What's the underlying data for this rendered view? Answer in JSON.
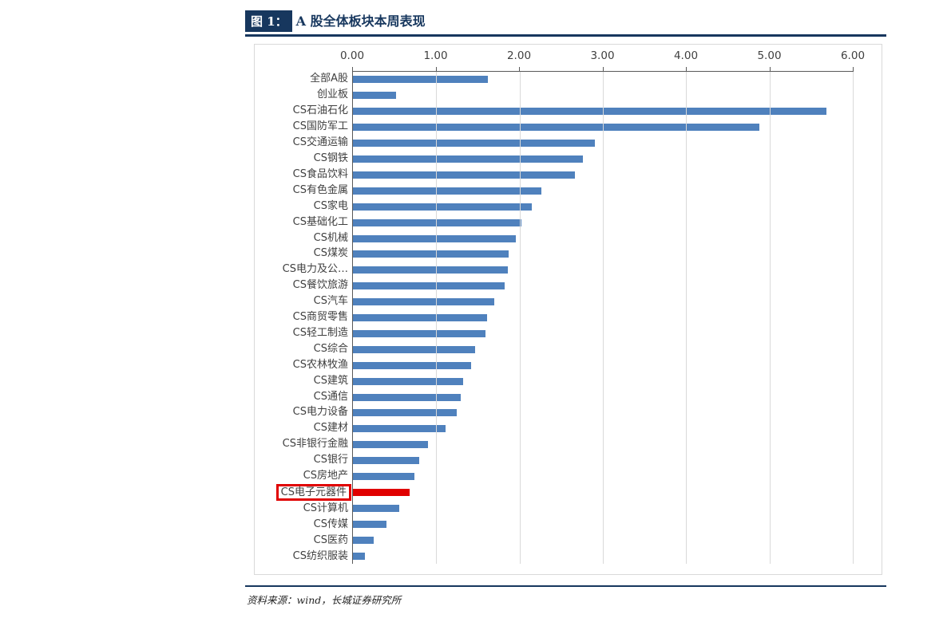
{
  "figure": {
    "label": "图 1：",
    "title": "A 股全体板块本周表现",
    "source": "资料来源：wind，长城证券研究所"
  },
  "colors": {
    "accent_navy": "#17375E",
    "bar_blue": "#4F81BD",
    "highlight_red": "#E00000",
    "gridline": "#D9D9D9",
    "axis": "#595959",
    "frame_border": "#D9D9D9",
    "text": "#404040"
  },
  "chart_data": {
    "type": "bar",
    "orientation": "horizontal",
    "title": "A 股全体板块本周表现",
    "xlabel": "",
    "ylabel": "",
    "xlim": [
      0,
      6
    ],
    "x_ticks": [
      0,
      1,
      2,
      3,
      4,
      5,
      6
    ],
    "x_tick_labels": [
      "0.00",
      "1.00",
      "2.00",
      "3.00",
      "4.00",
      "5.00",
      "6.00"
    ],
    "grid": true,
    "legend": false,
    "axis_position": "top",
    "bar_color": "#4F81BD",
    "highlight_color": "#E00000",
    "highlight_index": 26,
    "highlight_category": "CS电子元器件",
    "categories": [
      "全部A股",
      "创业板",
      "CS石油石化",
      "CS国防军工",
      "CS交通运输",
      "CS钢铁",
      "CS食品饮料",
      "CS有色金属",
      "CS家电",
      "CS基础化工",
      "CS机械",
      "CS煤炭",
      "CS电力及公…",
      "CS餐饮旅游",
      "CS汽车",
      "CS商贸零售",
      "CS轻工制造",
      "CS综合",
      "CS农林牧渔",
      "CS建筑",
      "CS通信",
      "CS电力设备",
      "CS建材",
      "CS非银行金融",
      "CS银行",
      "CS房地产",
      "CS电子元器件",
      "CS计算机",
      "CS传媒",
      "CS医药",
      "CS纺织服装"
    ],
    "values": [
      1.62,
      0.52,
      5.68,
      4.88,
      2.9,
      2.76,
      2.66,
      2.26,
      2.15,
      2.02,
      1.96,
      1.87,
      1.86,
      1.82,
      1.7,
      1.61,
      1.59,
      1.47,
      1.42,
      1.32,
      1.29,
      1.25,
      1.11,
      0.9,
      0.8,
      0.74,
      0.68,
      0.56,
      0.4,
      0.25,
      0.14
    ]
  }
}
